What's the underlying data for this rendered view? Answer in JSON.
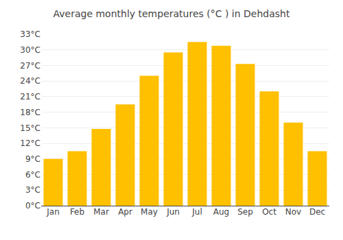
{
  "chart_data": {
    "type": "bar",
    "title": "Average monthly temperatures (°C ) in Dehdasht",
    "categories": [
      "Jan",
      "Feb",
      "Mar",
      "Apr",
      "May",
      "Jun",
      "Jul",
      "Aug",
      "Sep",
      "Oct",
      "Nov",
      "Dec"
    ],
    "values": [
      9.0,
      10.5,
      14.8,
      19.5,
      25.0,
      29.5,
      31.5,
      30.8,
      27.3,
      22.0,
      16.0,
      10.5
    ],
    "color": "#FFC000",
    "ylim": [
      0,
      33
    ],
    "yticks": [
      {
        "value": 0,
        "label": "0°C"
      },
      {
        "value": 3,
        "label": "3°C"
      },
      {
        "value": 6,
        "label": "6°C"
      },
      {
        "value": 9,
        "label": "9°C"
      },
      {
        "value": 12,
        "label": "12°C"
      },
      {
        "value": 15,
        "label": "15°C"
      },
      {
        "value": 18,
        "label": "18°C"
      },
      {
        "value": 21,
        "label": "21°C"
      },
      {
        "value": 24,
        "label": "24°C"
      },
      {
        "value": 27,
        "label": "27°C"
      },
      {
        "value": 30,
        "label": "30°C"
      },
      {
        "value": 33,
        "label": "33°C"
      }
    ],
    "grid": true
  }
}
